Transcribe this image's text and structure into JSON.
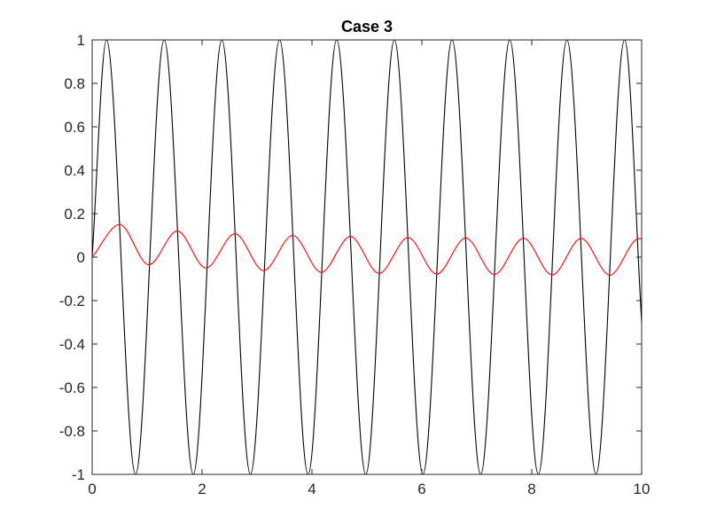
{
  "chart_data": {
    "type": "line",
    "title": "Case 3",
    "xlabel": "",
    "ylabel": "",
    "xlim": [
      0,
      10
    ],
    "ylim": [
      -1,
      1
    ],
    "xticks": [
      0,
      2,
      4,
      6,
      8,
      10
    ],
    "xtick_labels": [
      "0",
      "2",
      "4",
      "6",
      "8",
      "10"
    ],
    "yticks": [
      -1,
      -0.8,
      -0.6,
      -0.4,
      -0.2,
      0,
      0.2,
      0.4,
      0.6,
      0.8,
      1
    ],
    "ytick_labels": [
      "-1",
      "-0.8",
      "-0.6",
      "-0.4",
      "-0.2",
      "0",
      "0.2",
      "0.4",
      "0.6",
      "0.8",
      "1"
    ],
    "grid": false,
    "box": true,
    "series": [
      {
        "color": "#000000",
        "x": [
          0,
          0.26,
          0.79,
          1.31,
          1.84,
          2.36,
          2.88,
          3.41,
          3.93,
          4.45,
          4.98,
          5.5,
          6.02,
          6.55,
          7.07,
          7.6,
          8.12,
          8.64,
          9.17,
          9.69,
          10
        ],
        "y": [
          0,
          1,
          -1,
          1,
          -1,
          1,
          -1,
          1,
          -1,
          1,
          -1,
          1,
          -1,
          1,
          -1,
          1,
          -1,
          1,
          -1,
          1,
          -0.3
        ]
      },
      {
        "color": "#ff0000",
        "x": [
          0,
          0.5,
          1.03,
          1.55,
          2.07,
          2.6,
          3.12,
          3.65,
          4.17,
          4.7,
          5.22,
          5.75,
          6.27,
          6.8,
          7.32,
          7.85,
          8.37,
          8.9,
          9.42,
          9.95,
          10
        ],
        "y": [
          0,
          0.15,
          -0.035,
          0.12,
          -0.05,
          0.108,
          -0.062,
          0.1,
          -0.07,
          0.095,
          -0.075,
          0.09,
          -0.078,
          0.088,
          -0.08,
          0.087,
          -0.082,
          0.086,
          -0.083,
          0.085,
          0.085
        ]
      }
    ]
  }
}
